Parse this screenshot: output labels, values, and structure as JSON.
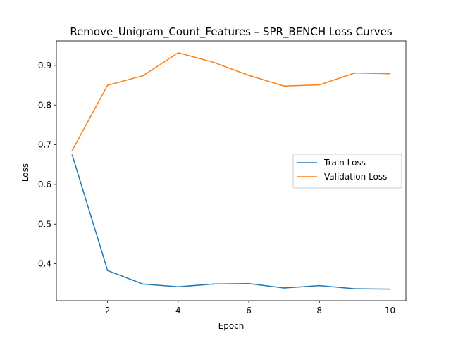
{
  "chart_data": {
    "type": "line",
    "title": "Remove_Unigram_Count_Features – SPR_BENCH Loss Curves",
    "xlabel": "Epoch",
    "ylabel": "Loss",
    "xlim": [
      0.55,
      10.45
    ],
    "ylim": [
      0.307,
      0.962
    ],
    "xticks": [
      2,
      4,
      6,
      8,
      10
    ],
    "yticks": [
      0.4,
      0.5,
      0.6,
      0.7,
      0.8,
      0.9
    ],
    "grid": false,
    "legend_position": "center-right",
    "x": [
      1,
      2,
      3,
      4,
      5,
      6,
      7,
      8,
      9,
      10
    ],
    "series": [
      {
        "name": "Train Loss",
        "color": "#1f77b4",
        "values": [
          0.674,
          0.383,
          0.349,
          0.342,
          0.349,
          0.35,
          0.339,
          0.345,
          0.337,
          0.336
        ]
      },
      {
        "name": "Validation Loss",
        "color": "#ff7f0e",
        "values": [
          0.686,
          0.85,
          0.874,
          0.932,
          0.908,
          0.875,
          0.848,
          0.851,
          0.881,
          0.879
        ]
      }
    ]
  }
}
